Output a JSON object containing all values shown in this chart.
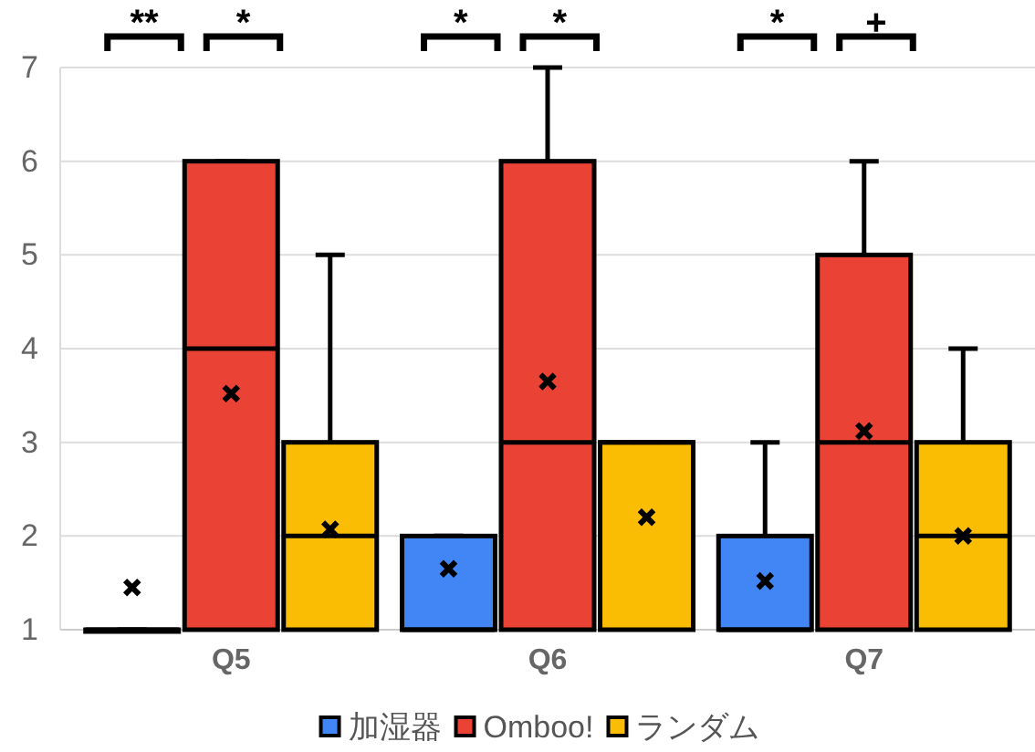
{
  "chart_data": {
    "type": "box",
    "categories": [
      "Q5",
      "Q6",
      "Q7"
    ],
    "ylim": [
      1,
      7
    ],
    "yticks": [
      1,
      2,
      3,
      4,
      5,
      6,
      7
    ],
    "grid": "y",
    "legend": "bottom",
    "series": [
      {
        "name": "加湿器",
        "color": "#4285f4",
        "boxes": [
          {
            "low": 1,
            "q1": 1,
            "median": 1,
            "q3": 1,
            "high": 1,
            "mean": 1.45
          },
          {
            "low": 1,
            "q1": 1,
            "median": 1,
            "q3": 2,
            "high": 2,
            "mean": 1.65
          },
          {
            "low": 1,
            "q1": 1,
            "median": 1,
            "q3": 2,
            "high": 3,
            "mean": 1.52
          }
        ]
      },
      {
        "name": "Omboo!",
        "color": "#ea4335",
        "boxes": [
          {
            "low": 1,
            "q1": 1,
            "median": 4,
            "q3": 6,
            "high": 6,
            "mean": 3.52
          },
          {
            "low": 1,
            "q1": 1,
            "median": 3,
            "q3": 6,
            "high": 7,
            "mean": 3.65
          },
          {
            "low": 1,
            "q1": 1,
            "median": 3,
            "q3": 5,
            "high": 6,
            "mean": 3.12
          }
        ]
      },
      {
        "name": "ランダム",
        "color": "#fbbc04",
        "boxes": [
          {
            "low": 1,
            "q1": 1,
            "median": 2,
            "q3": 3,
            "high": 5,
            "mean": 2.07
          },
          {
            "low": 1,
            "q1": 1,
            "median": 3,
            "q3": 3,
            "high": 3,
            "mean": 2.2
          },
          {
            "low": 1,
            "q1": 1,
            "median": 2,
            "q3": 3,
            "high": 4,
            "mean": 2.0
          }
        ]
      }
    ],
    "annotations": [
      "**",
      "*",
      "*",
      "*",
      "*",
      "+"
    ]
  }
}
